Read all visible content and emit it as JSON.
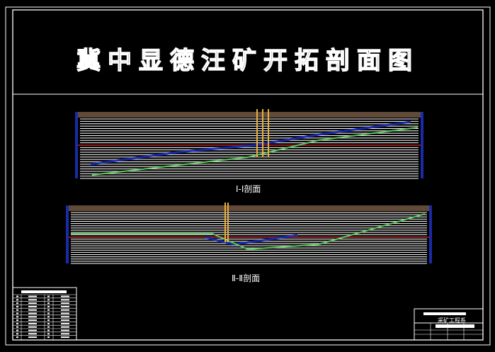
{
  "title": "冀中显德汪矿开拓剖面图",
  "sections": [
    {
      "label": "Ⅰ-Ⅰ剖面"
    },
    {
      "label": "Ⅱ-Ⅱ剖面"
    }
  ],
  "title_block": {
    "name": "采矿工程系"
  },
  "colors": {
    "background": "#000000",
    "lines": "#ffffff",
    "coal_seam_blue": "#1a2aa8",
    "coal_seam_green": "#5ec85e",
    "red_horizon": "#8a1a1a",
    "shaft": "#e8b040",
    "surface_soil": "#8a6a50"
  }
}
